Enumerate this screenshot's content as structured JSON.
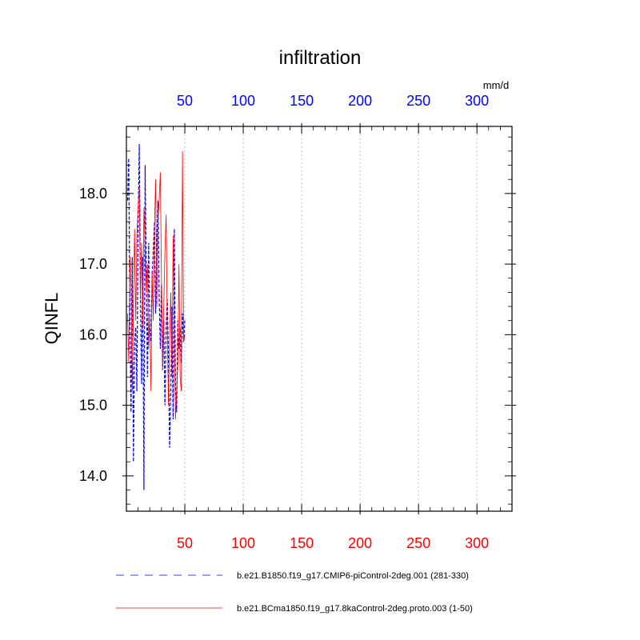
{
  "chart_data": {
    "type": "line",
    "title": "infiltration",
    "ylabel": "QINFL",
    "units": "mm/d",
    "xlim": [
      0,
      330
    ],
    "ylim": [
      13.5,
      18.95
    ],
    "x_ticks": [
      50,
      100,
      150,
      200,
      250,
      300
    ],
    "x_tick_labels": [
      "50",
      "100",
      "150",
      "200",
      "250",
      "300"
    ],
    "y_ticks": [
      14.0,
      15.0,
      16.0,
      17.0,
      18.0
    ],
    "y_tick_labels": [
      "14.0",
      "15.0",
      "16.0",
      "17.0",
      "18.0"
    ],
    "top_axis_color": "#0000ff",
    "bottom_axis_color": "#ff0000",
    "grid": "vertical dashed at x ticks",
    "series": [
      {
        "name": "b.e21.B1850.f19_g17.CMIP6-piControl-2deg.001 (281-330)",
        "color": "#0000ff",
        "dash": "dashed",
        "x": [
          1,
          2,
          3,
          4,
          5,
          6,
          7,
          8,
          9,
          10,
          11,
          12,
          13,
          14,
          15,
          16,
          17,
          18,
          19,
          20,
          21,
          22,
          23,
          24,
          25,
          26,
          27,
          28,
          29,
          30,
          31,
          32,
          33,
          34,
          35,
          36,
          37,
          38,
          39,
          40,
          41,
          42,
          43,
          44,
          45,
          46,
          47,
          48,
          49,
          50
        ],
        "y": [
          17.9,
          18.5,
          16.2,
          14.9,
          17.1,
          14.2,
          15.9,
          16.1,
          15.2,
          17.5,
          18.7,
          16.6,
          15.3,
          17.1,
          13.8,
          18.4,
          16.9,
          15.4,
          17.3,
          16.1,
          15.9,
          16.8,
          17.2,
          17.6,
          16.3,
          17.3,
          17.9,
          16.6,
          15.8,
          16.7,
          15.5,
          16.2,
          15.0,
          16.1,
          16.5,
          15.7,
          14.4,
          15.2,
          16.4,
          14.8,
          17.5,
          15.3,
          14.9,
          16.2,
          15.8,
          16.1,
          15.6,
          16.3,
          15.9,
          16.2
        ]
      },
      {
        "name": "b.e21.BCma1850.f19_g17.8kaControl-2deg.proto.003 (1-50)",
        "color": "#ff0000",
        "dash": "solid",
        "x": [
          1,
          2,
          3,
          4,
          5,
          6,
          7,
          8,
          9,
          10,
          11,
          12,
          13,
          14,
          15,
          16,
          17,
          18,
          19,
          20,
          21,
          22,
          23,
          24,
          25,
          26,
          27,
          28,
          29,
          30,
          31,
          32,
          33,
          34,
          35,
          36,
          37,
          38,
          39,
          40,
          41,
          42,
          43,
          44,
          45,
          46,
          47,
          48,
          49,
          50
        ],
        "y": [
          16.3,
          15.6,
          17.1,
          16.7,
          15.2,
          16.4,
          17.5,
          16.2,
          17.4,
          17.8,
          18.1,
          16.5,
          17.3,
          16.1,
          17.8,
          17.2,
          16.6,
          17.0,
          15.8,
          16.3,
          15.2,
          16.9,
          16.2,
          17.5,
          18.2,
          16.4,
          17.6,
          17.9,
          18.3,
          16.8,
          15.5,
          16.4,
          17.2,
          17.7,
          16.1,
          15.0,
          15.9,
          16.6,
          15.4,
          17.4,
          16.0,
          14.8,
          15.2,
          15.6,
          17.0,
          15.4,
          15.2,
          18.6,
          15.9,
          16.0
        ]
      }
    ]
  }
}
